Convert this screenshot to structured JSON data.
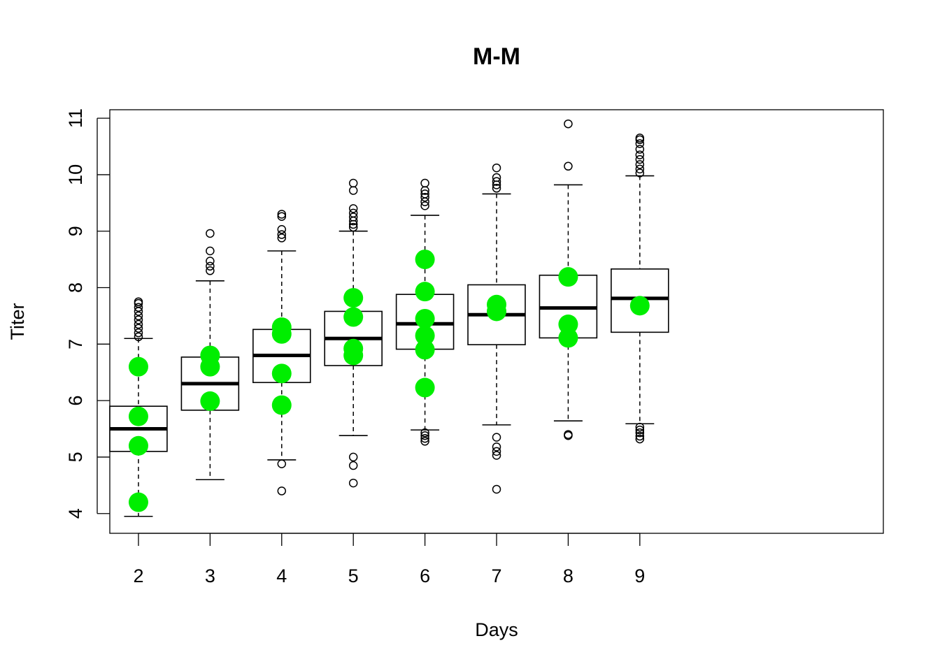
{
  "chart_data": {
    "type": "boxplot",
    "title": "M-M",
    "xlabel": "Days",
    "ylabel": "Titer",
    "categories": [
      "2",
      "3",
      "4",
      "5",
      "6",
      "7",
      "8",
      "9"
    ],
    "xlim": [
      -0.4,
      10.4
    ],
    "ylim": [
      3.65,
      11.15
    ],
    "yticks": [
      4,
      5,
      6,
      7,
      8,
      9,
      10,
      11
    ],
    "grid": false,
    "boxes": [
      {
        "category": "2",
        "whisker_low": 3.95,
        "q1": 5.1,
        "median": 5.5,
        "q3": 5.9,
        "whisker_high": 7.1,
        "outliers": [
          7.13,
          7.2,
          7.28,
          7.35,
          7.43,
          7.5,
          7.58,
          7.65,
          7.72,
          7.75
        ]
      },
      {
        "category": "3",
        "whisker_low": 4.6,
        "q1": 5.83,
        "median": 6.3,
        "q3": 6.77,
        "whisker_high": 8.12,
        "outliers": [
          8.3,
          8.38,
          8.47,
          8.65,
          8.96
        ]
      },
      {
        "category": "4",
        "whisker_low": 4.95,
        "q1": 6.32,
        "median": 6.8,
        "q3": 7.26,
        "whisker_high": 8.65,
        "outliers": [
          4.4,
          4.88,
          8.88,
          8.94,
          9.03,
          9.26,
          9.3
        ]
      },
      {
        "category": "5",
        "whisker_low": 5.38,
        "q1": 6.62,
        "median": 7.1,
        "q3": 7.58,
        "whisker_high": 9.0,
        "outliers": [
          4.54,
          4.85,
          5.0,
          9.07,
          9.12,
          9.18,
          9.25,
          9.32,
          9.4,
          9.72,
          9.85
        ]
      },
      {
        "category": "6",
        "whisker_low": 5.48,
        "q1": 6.91,
        "median": 7.36,
        "q3": 7.88,
        "whisker_high": 9.28,
        "outliers": [
          5.28,
          5.33,
          5.38,
          5.43,
          9.45,
          9.52,
          9.6,
          9.66,
          9.72,
          9.85
        ]
      },
      {
        "category": "7",
        "whisker_low": 5.57,
        "q1": 6.99,
        "median": 7.52,
        "q3": 8.05,
        "whisker_high": 9.66,
        "outliers": [
          4.43,
          5.03,
          5.1,
          5.18,
          5.35,
          9.76,
          9.82,
          9.88,
          9.95,
          10.12
        ]
      },
      {
        "category": "8",
        "whisker_low": 5.64,
        "q1": 7.11,
        "median": 7.64,
        "q3": 8.22,
        "whisker_high": 9.82,
        "outliers": [
          5.38,
          5.4,
          10.15,
          10.9
        ]
      },
      {
        "category": "9",
        "whisker_low": 5.59,
        "q1": 7.21,
        "median": 7.81,
        "q3": 8.33,
        "whisker_high": 9.98,
        "outliers": [
          5.32,
          5.37,
          5.43,
          5.48,
          5.53,
          10.03,
          10.1,
          10.18,
          10.27,
          10.35,
          10.45,
          10.55,
          10.62,
          10.65
        ]
      }
    ],
    "points": {
      "color": "#00ee00",
      "series": [
        {
          "category": "2",
          "values": [
            4.2,
            5.2,
            5.72,
            6.6
          ]
        },
        {
          "category": "3",
          "values": [
            5.99,
            6.6,
            6.8
          ]
        },
        {
          "category": "4",
          "values": [
            5.92,
            6.48,
            7.18,
            7.3
          ]
        },
        {
          "category": "5",
          "values": [
            6.8,
            6.92,
            7.48,
            7.82
          ]
        },
        {
          "category": "6",
          "values": [
            6.23,
            6.9,
            7.15,
            7.45,
            7.93,
            8.5
          ]
        },
        {
          "category": "7",
          "values": [
            7.58,
            7.7
          ]
        },
        {
          "category": "8",
          "values": [
            7.11,
            7.35,
            8.19
          ]
        },
        {
          "category": "9",
          "values": [
            7.68
          ]
        }
      ]
    }
  }
}
